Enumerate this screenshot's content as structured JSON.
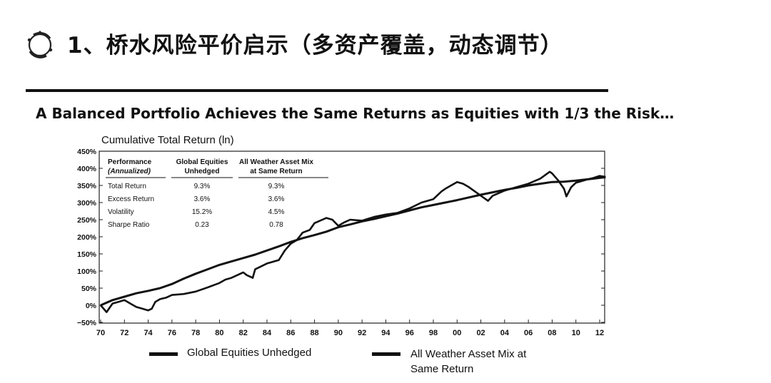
{
  "header": {
    "logo_icon": "ring-logo-icon",
    "title": "1、桥水风险平价启示（多资产覆盖，动态调节）"
  },
  "subtitle": "A Balanced Portfolio Achieves the Same Returns as Equities with 1/3 the Risk…",
  "chart_data": {
    "type": "line",
    "title": "Cumulative Total Return (ln)",
    "xlabel": "",
    "ylabel": "",
    "xlim": [
      1970,
      2012.5
    ],
    "ylim": [
      -50,
      450
    ],
    "x_ticks": [
      "70",
      "72",
      "74",
      "76",
      "78",
      "80",
      "82",
      "84",
      "86",
      "88",
      "90",
      "92",
      "94",
      "96",
      "98",
      "00",
      "02",
      "04",
      "06",
      "08",
      "10",
      "12"
    ],
    "y_ticks": [
      "450%",
      "400%",
      "350%",
      "300%",
      "250%",
      "200%",
      "150%",
      "100%",
      "50%",
      "0%",
      "−50%"
    ],
    "series": [
      {
        "name": "Global Equities Unhedged",
        "x": [
          1970,
          1970.5,
          1971,
          1971.5,
          1972,
          1972.5,
          1973,
          1973.5,
          1974,
          1974.3,
          1974.6,
          1975,
          1975.5,
          1976,
          1977,
          1978,
          1979,
          1980,
          1980.5,
          1981,
          1982,
          1982.3,
          1982.8,
          1983,
          1984,
          1985,
          1985.5,
          1986,
          1986.5,
          1987,
          1987.6,
          1988,
          1989,
          1989.5,
          1990,
          1990.5,
          1991,
          1992,
          1993,
          1994,
          1995,
          1996,
          1997,
          1998,
          1998.7,
          1999,
          2000,
          2000.5,
          2001,
          2002,
          2002.6,
          2003,
          2004,
          2005,
          2006,
          2007,
          2007.8,
          2008,
          2008.5,
          2009,
          2009.2,
          2009.6,
          2010,
          2011,
          2011.5,
          2012,
          2012.5
        ],
        "values": [
          0,
          -20,
          5,
          10,
          15,
          5,
          -5,
          -10,
          -15,
          -10,
          10,
          18,
          22,
          30,
          33,
          40,
          52,
          65,
          75,
          80,
          96,
          88,
          80,
          105,
          122,
          132,
          160,
          180,
          190,
          212,
          220,
          240,
          255,
          250,
          232,
          242,
          250,
          247,
          258,
          265,
          270,
          283,
          300,
          310,
          333,
          340,
          360,
          355,
          345,
          320,
          305,
          320,
          335,
          345,
          355,
          370,
          390,
          385,
          365,
          340,
          318,
          345,
          358,
          368,
          372,
          378,
          375
        ]
      },
      {
        "name": "All Weather Asset Mix at Same Return",
        "x": [
          1970,
          1971,
          1972,
          1973,
          1974,
          1975,
          1976,
          1977,
          1978,
          1979,
          1980,
          1981,
          1982,
          1983,
          1984,
          1985,
          1986,
          1987,
          1988,
          1989,
          1990,
          1991,
          1992,
          1993,
          1994,
          1995,
          1996,
          1997,
          1998,
          1999,
          2000,
          2001,
          2002,
          2003,
          2004,
          2005,
          2006,
          2007,
          2008,
          2009,
          2010,
          2011,
          2012,
          2012.5
        ],
        "values": [
          0,
          15,
          25,
          35,
          42,
          50,
          62,
          78,
          92,
          105,
          118,
          128,
          138,
          148,
          160,
          172,
          185,
          196,
          205,
          215,
          228,
          236,
          245,
          252,
          260,
          268,
          277,
          286,
          293,
          300,
          307,
          315,
          323,
          330,
          337,
          343,
          350,
          355,
          360,
          361,
          364,
          368,
          372,
          374
        ]
      }
    ],
    "legend_position": "bottom",
    "grid": false,
    "table": {
      "columns": [
        "Performance\n(Annualized)",
        "Global Equities\nUnhedged",
        "All Weather Asset Mix\nat Same Return"
      ],
      "rows": [
        [
          "Total Return",
          "9.3%",
          "9.3%"
        ],
        [
          "Excess Return",
          "3.6%",
          "3.6%"
        ],
        [
          "Volatility",
          "15.2%",
          "4.5%"
        ],
        [
          "Sharpe Ratio",
          "0.23",
          "0.78"
        ]
      ]
    }
  }
}
